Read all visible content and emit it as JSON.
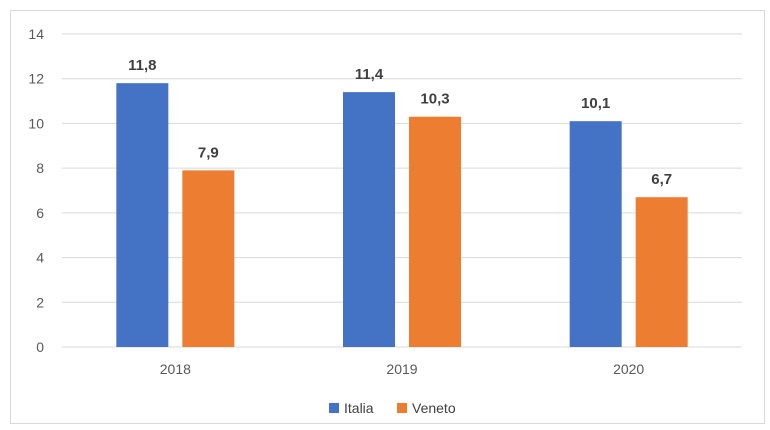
{
  "chart_data": {
    "type": "bar",
    "categories": [
      "2018",
      "2019",
      "2020"
    ],
    "series": [
      {
        "name": "Italia",
        "values": [
          11.8,
          11.4,
          10.1
        ],
        "labels": [
          "11,8",
          "11,4",
          "10,1"
        ],
        "color": "#4472C4"
      },
      {
        "name": "Veneto",
        "values": [
          7.9,
          10.3,
          6.7
        ],
        "labels": [
          "7,9",
          "10,3",
          "6,7"
        ],
        "color": "#ED7D31"
      }
    ],
    "yticks": [
      "0",
      "2",
      "4",
      "6",
      "8",
      "10",
      "12",
      "14"
    ],
    "ylim": [
      0,
      14
    ],
    "grid": true,
    "legend": "bottom",
    "title": "",
    "xlabel": "",
    "ylabel": ""
  }
}
